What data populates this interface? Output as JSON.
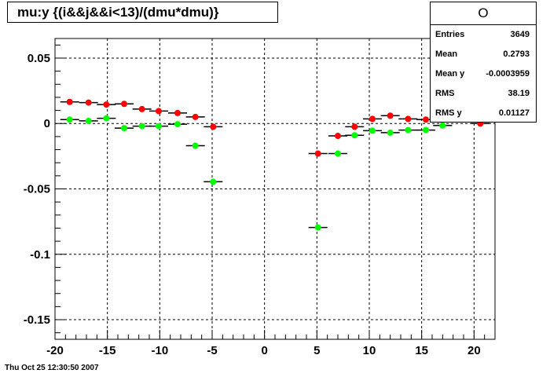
{
  "title": "mu:y {(i&&j&&i<13)/(dmu*dmu)}",
  "stats": {
    "name": "O",
    "rows": [
      {
        "label": "Entries",
        "value": "3649"
      },
      {
        "label": "Mean",
        "value": "0.2793"
      },
      {
        "label": "Mean y",
        "value": "-0.0003959"
      },
      {
        "label": "RMS",
        "value": "38.19"
      },
      {
        "label": "RMS y",
        "value": "0.01127"
      }
    ]
  },
  "timestamp": "Thu Oct 25 12:30:50 2007",
  "chart_data": {
    "type": "scatter",
    "title": "mu:y {(i&&j&&i<13)/(dmu*dmu)}",
    "xlim": [
      -20,
      22
    ],
    "ylim": [
      -0.165,
      0.065
    ],
    "xticks": [
      -20,
      -15,
      -10,
      -5,
      0,
      5,
      10,
      15,
      20
    ],
    "xtick_labels": [
      "-20",
      "-15",
      "-10",
      "-5",
      "0",
      "5",
      "10",
      "15",
      "20"
    ],
    "yticks": [
      -0.15,
      -0.1,
      -0.05,
      0,
      0.05
    ],
    "ytick_labels": [
      "-0.15",
      "-0.1",
      "-0.05",
      "0",
      "0.05"
    ],
    "grid": true,
    "bin_half_width": 0.9,
    "series": [
      {
        "color": "#ff0000",
        "points": [
          {
            "x": -18.6,
            "y": 0.0165
          },
          {
            "x": -16.8,
            "y": 0.016
          },
          {
            "x": -15.1,
            "y": 0.0145
          },
          {
            "x": -13.4,
            "y": 0.015
          },
          {
            "x": -11.7,
            "y": 0.011
          },
          {
            "x": -10.1,
            "y": 0.0095
          },
          {
            "x": -8.3,
            "y": 0.008
          },
          {
            "x": -6.6,
            "y": 0.005
          },
          {
            "x": -4.9,
            "y": -0.0025
          },
          {
            "x": 5.1,
            "y": -0.023
          },
          {
            "x": 7.0,
            "y": -0.0095
          },
          {
            "x": 8.6,
            "y": -0.0025
          },
          {
            "x": 10.3,
            "y": 0.0035
          },
          {
            "x": 12.0,
            "y": 0.006
          },
          {
            "x": 13.7,
            "y": 0.0035
          },
          {
            "x": 15.4,
            "y": 0.003
          },
          {
            "x": 20.6,
            "y": 0.0
          }
        ]
      },
      {
        "color": "#00ff00",
        "points": [
          {
            "x": -18.6,
            "y": 0.003
          },
          {
            "x": -16.8,
            "y": 0.002
          },
          {
            "x": -15.1,
            "y": 0.004
          },
          {
            "x": -13.4,
            "y": -0.0035
          },
          {
            "x": -11.7,
            "y": -0.002
          },
          {
            "x": -10.1,
            "y": -0.002
          },
          {
            "x": -8.3,
            "y": -0.0005
          },
          {
            "x": -6.6,
            "y": -0.017
          },
          {
            "x": -4.9,
            "y": -0.0445
          },
          {
            "x": 5.1,
            "y": -0.0795
          },
          {
            "x": 7.0,
            "y": -0.023
          },
          {
            "x": 8.6,
            "y": -0.009
          },
          {
            "x": 10.3,
            "y": -0.0055
          },
          {
            "x": 12.0,
            "y": -0.007
          },
          {
            "x": 13.7,
            "y": -0.005
          },
          {
            "x": 15.4,
            "y": -0.005
          },
          {
            "x": 17.0,
            "y": -0.0015
          }
        ]
      }
    ]
  }
}
